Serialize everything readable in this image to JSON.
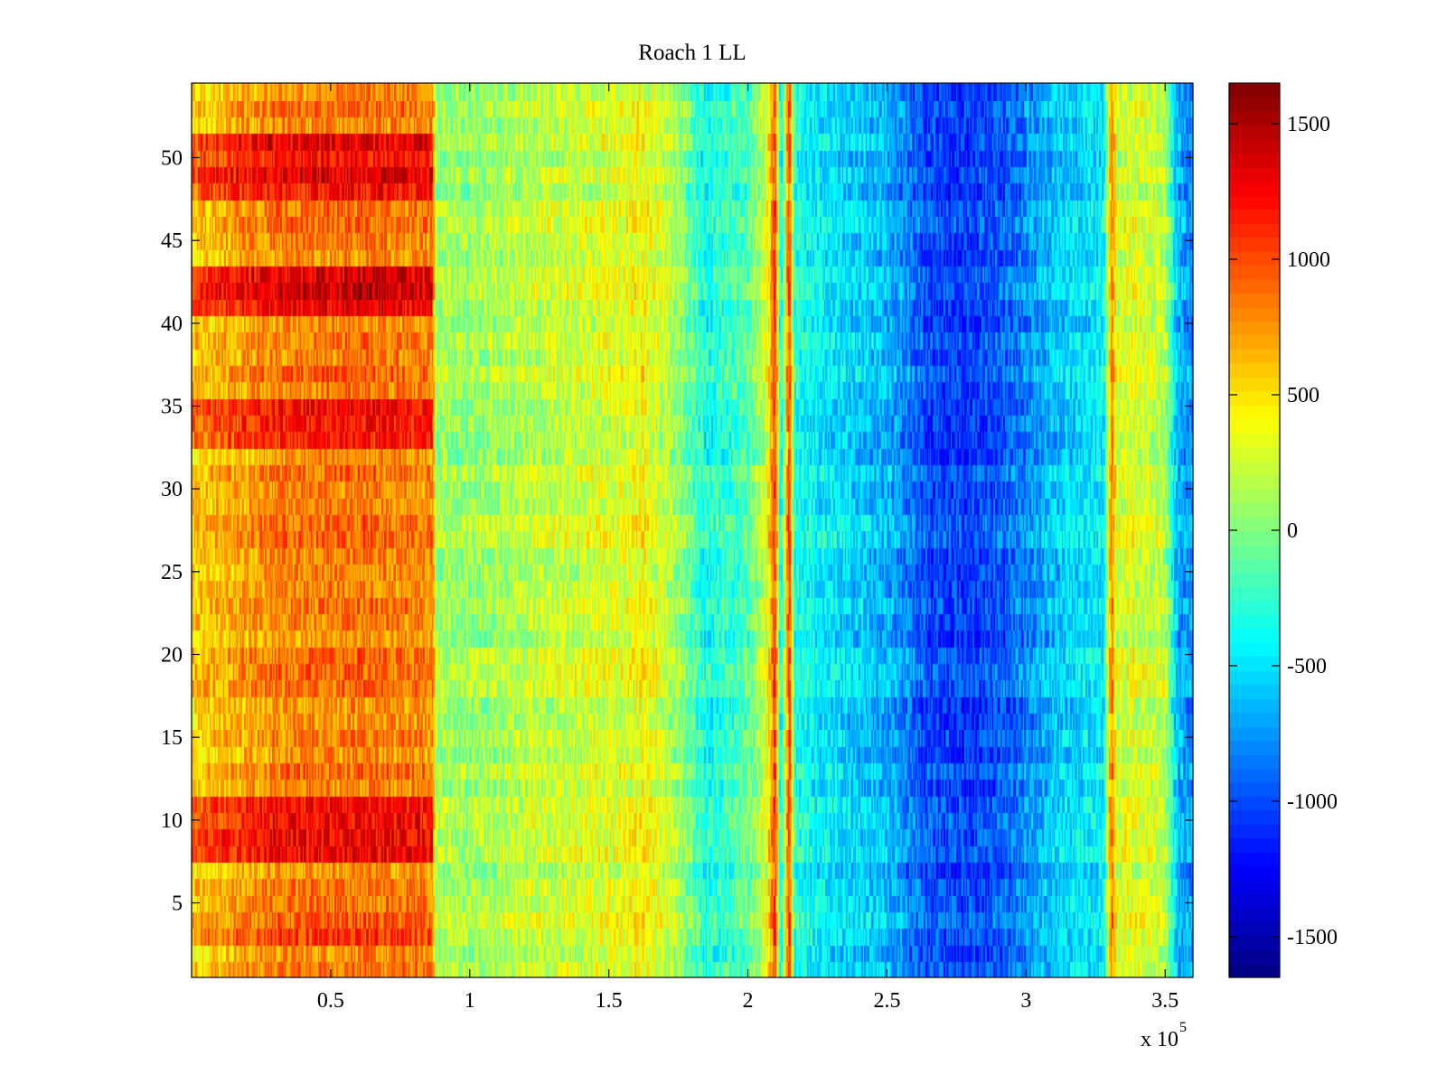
{
  "chart_data": {
    "type": "heatmap",
    "title": "Roach 1 LL",
    "xlabel": "",
    "ylabel": "",
    "x_scale_label": "x 10",
    "x_scale_exponent": "5",
    "xlim": [
      0,
      3.6
    ],
    "ylim": [
      0.5,
      54.5
    ],
    "x_ticks": [
      0.5,
      1,
      1.5,
      2,
      2.5,
      3,
      3.5
    ],
    "x_tick_labels": [
      "0.5",
      "1",
      "1.5",
      "2",
      "2.5",
      "3",
      "3.5"
    ],
    "y_ticks": [
      5,
      10,
      15,
      20,
      25,
      30,
      35,
      40,
      45,
      50
    ],
    "y_tick_labels": [
      "5",
      "10",
      "15",
      "20",
      "25",
      "30",
      "35",
      "40",
      "45",
      "50"
    ],
    "rows": 54,
    "colorbar": {
      "colormap": "jet",
      "clim": [
        -1650,
        1650
      ],
      "ticks": [
        -1500,
        -1000,
        -500,
        0,
        500,
        1000,
        1500
      ],
      "tick_labels": [
        "-1500",
        "-1000",
        "-500",
        "0",
        "500",
        "1000",
        "1500"
      ]
    },
    "column_profile": {
      "x": [
        0.0,
        0.3,
        0.6,
        0.87,
        0.88,
        1.0,
        1.2,
        1.4,
        1.55,
        1.62,
        1.75,
        1.85,
        2.0,
        2.07,
        2.1,
        2.12,
        2.15,
        2.17,
        2.25,
        2.5,
        2.65,
        2.8,
        2.95,
        3.1,
        3.28,
        3.31,
        3.33,
        3.38,
        3.5,
        3.55,
        3.6
      ],
      "value": [
        550,
        800,
        850,
        800,
        120,
        80,
        180,
        260,
        300,
        420,
        100,
        -350,
        -150,
        300,
        1100,
        -450,
        1100,
        -300,
        -450,
        -650,
        -1000,
        -1050,
        -900,
        -600,
        -450,
        900,
        250,
        300,
        200,
        -700,
        -750
      ]
    },
    "row_offsets": {
      "rows": [
        3,
        8,
        9,
        10,
        11,
        33,
        34,
        35,
        41,
        42,
        43,
        48,
        49,
        50,
        51
      ],
      "offset": [
        200,
        350,
        400,
        350,
        350,
        400,
        400,
        450,
        450,
        500,
        450,
        450,
        500,
        450,
        450
      ]
    }
  }
}
